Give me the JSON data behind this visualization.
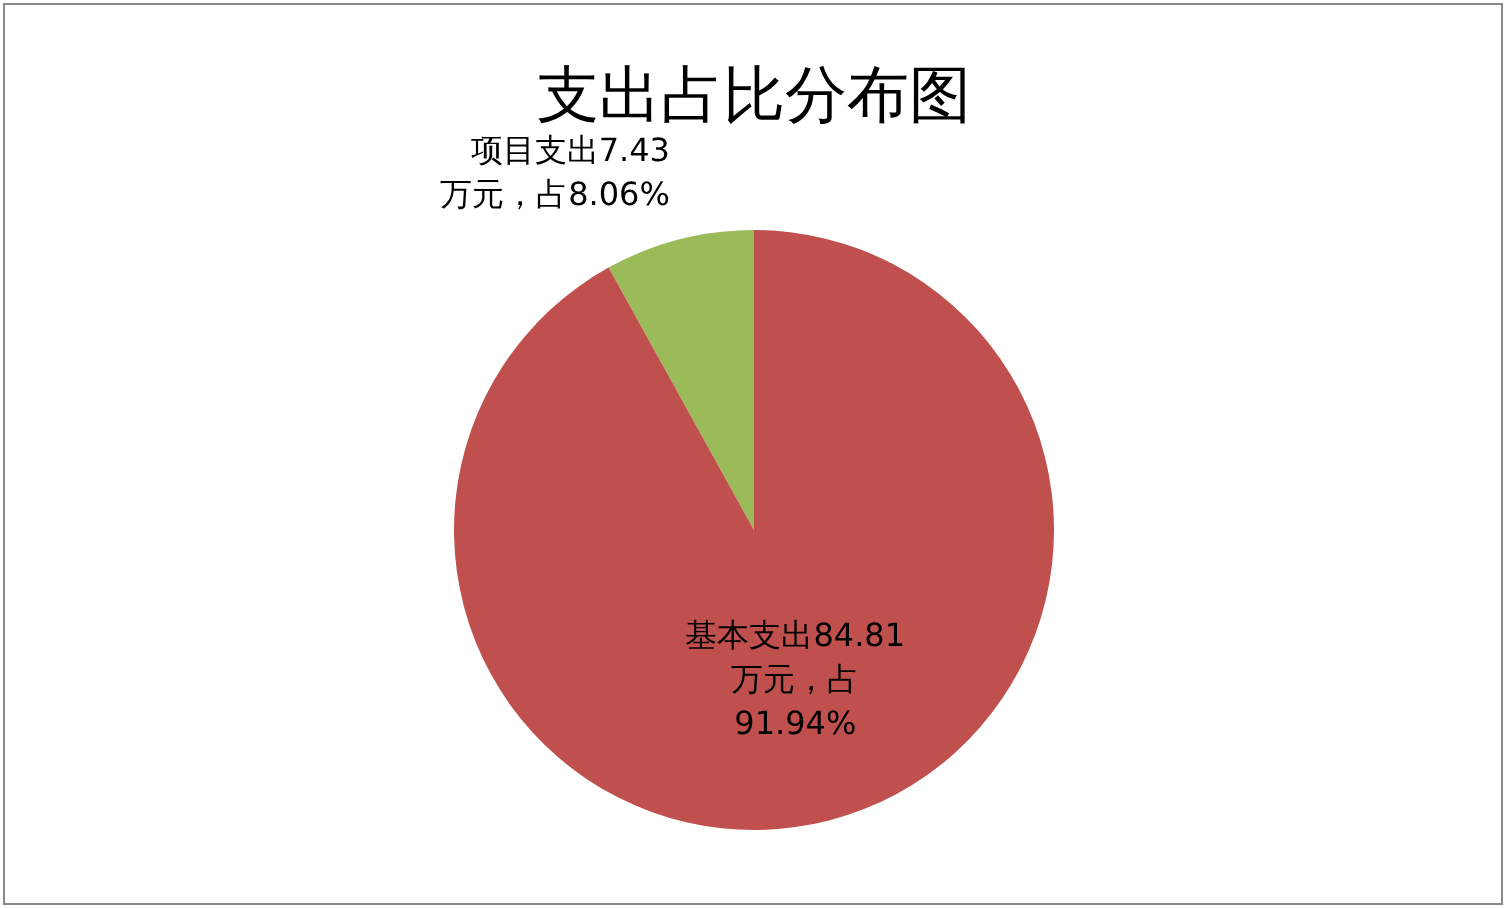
{
  "chart_data": {
    "type": "pie",
    "title": "支出占比分布图",
    "categories": [
      "项目支出",
      "基本支出"
    ],
    "values": [
      7.43,
      84.81
    ],
    "colors": [
      "#9bbb59",
      "#c0504d"
    ],
    "value_labels": [
      "7.43\n万元，占8.06%",
      "84.81\n万元，占\n91.94%"
    ],
    "legend": false
  }
}
